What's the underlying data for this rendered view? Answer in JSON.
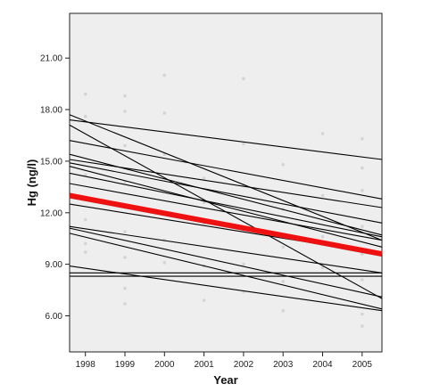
{
  "chart_data": {
    "type": "line",
    "title": "",
    "xlabel": "Year",
    "ylabel": "Hg (ng/l)",
    "xlim": [
      1997.6,
      2005.5
    ],
    "ylim": [
      3.9,
      23.6
    ],
    "x_ticks": [
      1998,
      1999,
      2000,
      2001,
      2002,
      2003,
      2004,
      2005
    ],
    "y_ticks": [
      6,
      9,
      12,
      15,
      18,
      21
    ],
    "y_tick_labels": [
      "6.00",
      "9.00",
      "12.00",
      "15.00",
      "18.00",
      "21.00"
    ],
    "grid": false,
    "legend": "none",
    "plot_background": "#eeeeee",
    "series": [
      {
        "x": [
          1997.6,
          2005.5
        ],
        "y": [
          17.4,
          15.1
        ]
      },
      {
        "x": [
          1997.6,
          2005.5
        ],
        "y": [
          17.7,
          10.4
        ]
      },
      {
        "x": [
          1997.6,
          2005.5
        ],
        "y": [
          17.1,
          7.0
        ]
      },
      {
        "x": [
          1997.6,
          2005.5
        ],
        "y": [
          16.2,
          12.8
        ]
      },
      {
        "x": [
          1997.6,
          2005.5
        ],
        "y": [
          15.4,
          10.7
        ]
      },
      {
        "x": [
          1997.6,
          2005.5
        ],
        "y": [
          15.1,
          12.3
        ]
      },
      {
        "x": [
          1997.6,
          2005.5
        ],
        "y": [
          14.9,
          11.4
        ]
      },
      {
        "x": [
          1997.6,
          2005.5
        ],
        "y": [
          14.7,
          10.0
        ]
      },
      {
        "x": [
          1997.6,
          2005.5
        ],
        "y": [
          14.3,
          10.6
        ]
      },
      {
        "x": [
          1997.6,
          2005.5
        ],
        "y": [
          13.7,
          10.4
        ]
      },
      {
        "x": [
          1997.6,
          2005.5
        ],
        "y": [
          12.5,
          9.6
        ]
      },
      {
        "x": [
          1997.6,
          2005.5
        ],
        "y": [
          11.2,
          8.5
        ]
      },
      {
        "x": [
          1997.6,
          2005.5
        ],
        "y": [
          11.1,
          7.1
        ]
      },
      {
        "x": [
          1997.6,
          2005.5
        ],
        "y": [
          10.8,
          6.4
        ]
      },
      {
        "x": [
          1997.6,
          2005.5
        ],
        "y": [
          8.9,
          6.3
        ]
      },
      {
        "x": [
          1997.6,
          2005.5
        ],
        "y": [
          8.5,
          8.5
        ]
      },
      {
        "x": [
          1997.6,
          2005.5
        ],
        "y": [
          8.3,
          8.3
        ]
      }
    ],
    "fit_line": {
      "x": [
        1997.6,
        2005.5
      ],
      "y": [
        13.0,
        9.6
      ],
      "color": "#ee1111"
    },
    "line_color": "#000000",
    "points": [
      {
        "x": 1998,
        "y": 18.9
      },
      {
        "x": 1998,
        "y": 17.6
      },
      {
        "x": 1998,
        "y": 14.2
      },
      {
        "x": 1998,
        "y": 12.9
      },
      {
        "x": 1998,
        "y": 11.6
      },
      {
        "x": 1998,
        "y": 10.2
      },
      {
        "x": 1998,
        "y": 9.7
      },
      {
        "x": 1999,
        "y": 18.8
      },
      {
        "x": 1999,
        "y": 17.9
      },
      {
        "x": 1999,
        "y": 15.9
      },
      {
        "x": 1999,
        "y": 13.8
      },
      {
        "x": 1999,
        "y": 12.4
      },
      {
        "x": 1999,
        "y": 10.9
      },
      {
        "x": 1999,
        "y": 9.4
      },
      {
        "x": 1999,
        "y": 7.6
      },
      {
        "x": 1999,
        "y": 6.7
      },
      {
        "x": 2000,
        "y": 20.0
      },
      {
        "x": 2000,
        "y": 17.8
      },
      {
        "x": 2000,
        "y": 15.4
      },
      {
        "x": 2000,
        "y": 12.0
      },
      {
        "x": 2000,
        "y": 10.4
      },
      {
        "x": 2000,
        "y": 9.1
      },
      {
        "x": 2001,
        "y": 14.0
      },
      {
        "x": 2001,
        "y": 12.6
      },
      {
        "x": 2001,
        "y": 11.4
      },
      {
        "x": 2001,
        "y": 8.9
      },
      {
        "x": 2001,
        "y": 6.9
      },
      {
        "x": 2002,
        "y": 19.8
      },
      {
        "x": 2002,
        "y": 16.0
      },
      {
        "x": 2002,
        "y": 13.6
      },
      {
        "x": 2002,
        "y": 11.0
      },
      {
        "x": 2002,
        "y": 9.0
      },
      {
        "x": 2002,
        "y": 7.4
      },
      {
        "x": 2003,
        "y": 14.8
      },
      {
        "x": 2003,
        "y": 12.2
      },
      {
        "x": 2003,
        "y": 10.0
      },
      {
        "x": 2003,
        "y": 8.0
      },
      {
        "x": 2003,
        "y": 6.3
      },
      {
        "x": 2004,
        "y": 16.6
      },
      {
        "x": 2004,
        "y": 13.0
      },
      {
        "x": 2004,
        "y": 10.6
      },
      {
        "x": 2004,
        "y": 8.8
      },
      {
        "x": 2005,
        "y": 16.3
      },
      {
        "x": 2005,
        "y": 14.6
      },
      {
        "x": 2005,
        "y": 13.3
      },
      {
        "x": 2005,
        "y": 11.2
      },
      {
        "x": 2005,
        "y": 9.6
      },
      {
        "x": 2005,
        "y": 8.1
      },
      {
        "x": 2005,
        "y": 6.1
      },
      {
        "x": 2005,
        "y": 5.4
      }
    ],
    "point_color": "#d4d4d4"
  }
}
